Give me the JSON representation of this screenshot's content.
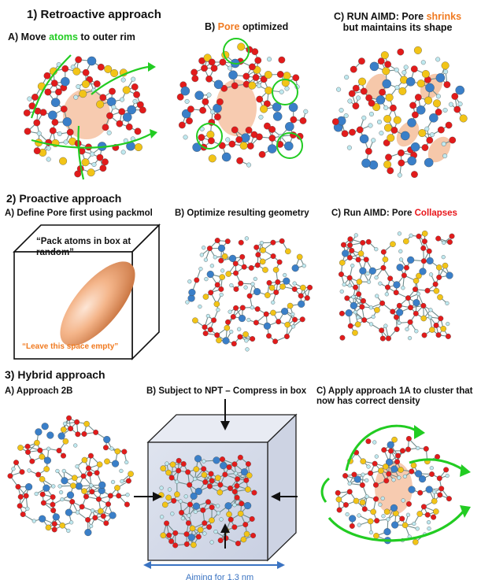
{
  "section1": {
    "title": "1) Retroactive approach",
    "a": {
      "pre": "A) Move ",
      "highlight": "atoms",
      "post": " to outer rim"
    },
    "b": {
      "pre": "B) ",
      "highlight": "Pore",
      "post": " optimized"
    },
    "c": {
      "line1_pre": "C) RUN AIMD: Pore ",
      "highlight": "shrinks",
      "line2": "but maintains its shape"
    }
  },
  "section2": {
    "title": "2) Proactive approach",
    "a": "A) Define Pore first using packmol",
    "b": "B) Optimize resulting geometry",
    "c": {
      "pre": "C) Run AIMD: Pore ",
      "highlight": "Collapses"
    },
    "box_text_top_1": "“Pack atoms in box at",
    "box_text_top_2": "random”",
    "box_text_bottom": "“Leave this space empty”"
  },
  "section3": {
    "title": "3) Hybrid approach",
    "a": "A) Approach 2B",
    "b": "B) Subject to NPT – Compress in box",
    "c_line1": "C) Apply approach 1A to cluster that",
    "c_line2": "now has correct density",
    "aim_label": "Aiming for 1.3 nm"
  },
  "colors": {
    "green": "#22cc22",
    "orange": "#f07a20",
    "red": "#e8161b",
    "oxygen": "#e21b1b",
    "silicon": "#f2c417",
    "metal": "#3a7fc8",
    "hydrogen": "#bfe9f0",
    "bond": "#6f8c8c",
    "pore": "#f3b58e",
    "arrow_blue": "#3a73c2"
  }
}
